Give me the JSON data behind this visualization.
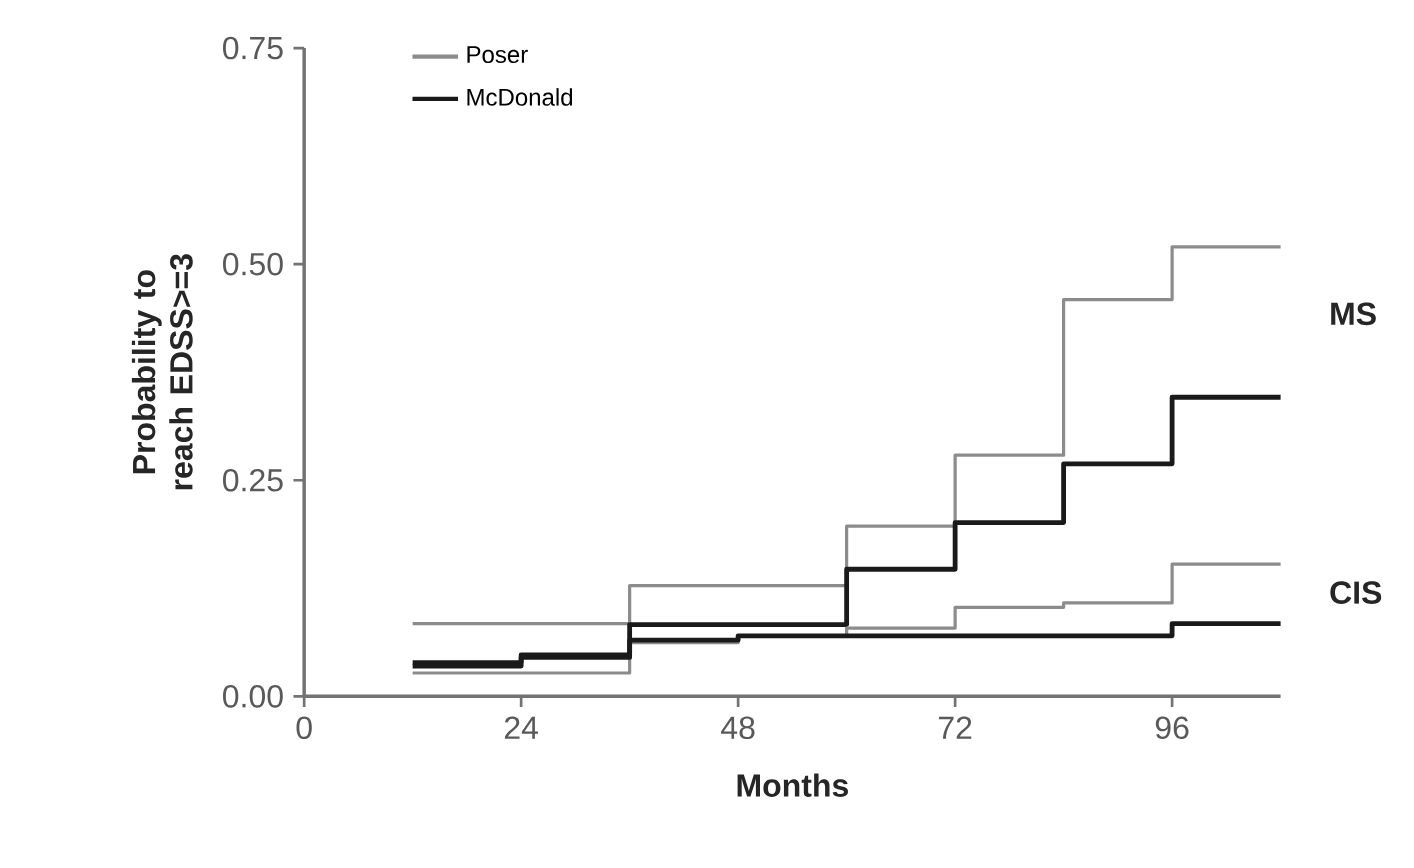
{
  "chart_data": {
    "type": "step",
    "xlabel": "Months",
    "ylabel": "Probability to reach EDSS>=3",
    "xlim": [
      0,
      108
    ],
    "ylim": [
      0,
      0.75
    ],
    "xticks": [
      0,
      24,
      48,
      72,
      96
    ],
    "yticks": [
      {
        "value": 0,
        "label": "0.00"
      },
      {
        "value": 0.25,
        "label": "0.25"
      },
      {
        "value": 0.5,
        "label": "0.50"
      },
      {
        "value": 0.75,
        "label": "0.75"
      }
    ],
    "legend": "top left",
    "grid": false,
    "marker": "none",
    "line_style": "solid",
    "series": [
      {
        "name": "Poser",
        "color": "#8c8c8c",
        "x": [
          12,
          36,
          60,
          72,
          84,
          96,
          108
        ],
        "values": [
          0.084,
          0.128,
          0.197,
          0.279,
          0.459,
          0.52,
          0.52
        ]
      },
      {
        "name": "McDonald",
        "color": "#1a1a1a",
        "x": [
          12,
          24,
          36,
          60,
          72,
          84,
          96,
          108
        ],
        "values": [
          0.039,
          0.048,
          0.083,
          0.147,
          0.201,
          0.269,
          0.346,
          0.346
        ]
      },
      {
        "color": "#8c8c8c",
        "x": [
          12,
          24,
          36,
          48,
          60,
          72,
          84,
          96,
          108
        ],
        "values": [
          0.027,
          0.027,
          0.062,
          0.07,
          0.079,
          0.103,
          0.108,
          0.153,
          0.153
        ]
      },
      {
        "color": "#1a1a1a",
        "x": [
          12,
          24,
          36,
          48,
          96,
          108
        ],
        "values": [
          0.035,
          0.045,
          0.065,
          0.07,
          0.084,
          0.084
        ]
      }
    ],
    "annotations": [
      "MS",
      "CIS"
    ]
  }
}
